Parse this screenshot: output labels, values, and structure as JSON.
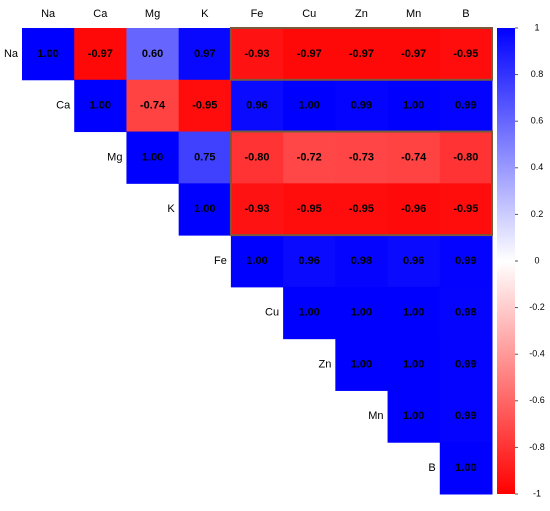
{
  "chart_data": {
    "type": "heatmap",
    "x_categories": [
      "Na",
      "Ca",
      "Mg",
      "K",
      "Fe",
      "Cu",
      "Zn",
      "Mn",
      "B"
    ],
    "y_categories": [
      "Na",
      "Ca",
      "Mg",
      "K",
      "Fe",
      "Cu",
      "Zn",
      "Mn",
      "B"
    ],
    "values": [
      [
        1.0,
        -0.97,
        0.6,
        0.97,
        -0.93,
        -0.97,
        -0.97,
        -0.97,
        -0.95
      ],
      [
        null,
        1.0,
        -0.74,
        -0.95,
        0.96,
        1.0,
        0.99,
        1.0,
        0.99
      ],
      [
        null,
        null,
        1.0,
        0.75,
        -0.8,
        -0.72,
        -0.73,
        -0.74,
        -0.8
      ],
      [
        null,
        null,
        null,
        1.0,
        -0.93,
        -0.95,
        -0.95,
        -0.96,
        -0.95
      ],
      [
        null,
        null,
        null,
        null,
        1.0,
        0.96,
        0.98,
        0.96,
        0.99
      ],
      [
        null,
        null,
        null,
        null,
        null,
        1.0,
        1.0,
        1.0,
        0.98
      ],
      [
        null,
        null,
        null,
        null,
        null,
        null,
        1.0,
        1.0,
        0.99
      ],
      [
        null,
        null,
        null,
        null,
        null,
        null,
        null,
        1.0,
        0.99
      ],
      [
        null,
        null,
        null,
        null,
        null,
        null,
        null,
        null,
        1.0
      ]
    ],
    "value_labels": [
      [
        "1.00",
        "-0.97",
        "0.60",
        "0.97",
        "-0.93",
        "-0.97",
        "-0.97",
        "-0.97",
        "-0.95"
      ],
      [
        null,
        "1.00",
        "-0.74",
        "-0.95",
        "0.96",
        "1.00",
        "0.99",
        "1.00",
        "0.99"
      ],
      [
        null,
        null,
        "1.00",
        "0.75",
        "-0.80",
        "-0.72",
        "-0.73",
        "-0.74",
        "-0.80"
      ],
      [
        null,
        null,
        null,
        "1.00",
        "-0.93",
        "-0.95",
        "-0.95",
        "-0.96",
        "-0.95"
      ],
      [
        null,
        null,
        null,
        null,
        "1.00",
        "0.96",
        "0.98",
        "0.96",
        "0.99"
      ],
      [
        null,
        null,
        null,
        null,
        null,
        "1.00",
        "1.00",
        "1.00",
        "0.98"
      ],
      [
        null,
        null,
        null,
        null,
        null,
        null,
        "1.00",
        "1.00",
        "0.99"
      ],
      [
        null,
        null,
        null,
        null,
        null,
        null,
        null,
        "1.00",
        "0.99"
      ],
      [
        null,
        null,
        null,
        null,
        null,
        null,
        null,
        null,
        "1.00"
      ]
    ],
    "clim": [
      -1,
      1
    ],
    "cticks": [
      1,
      0.8,
      0.6,
      0.4,
      0.2,
      0,
      -0.2,
      -0.4,
      -0.6,
      -0.8,
      -1
    ],
    "colors": [
      "#ff0000",
      "#ffffff",
      "#0000ff"
    ]
  }
}
